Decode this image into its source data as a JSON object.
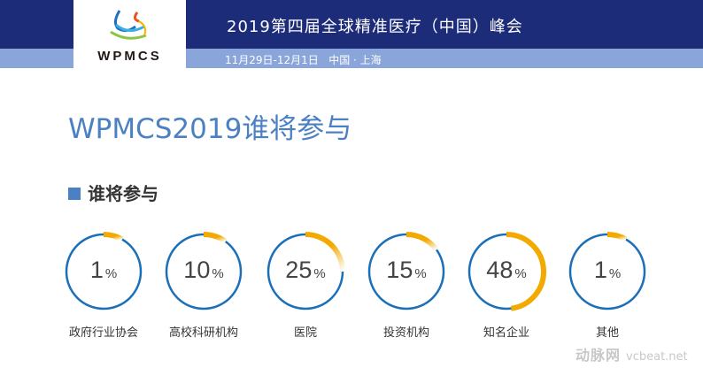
{
  "header": {
    "title": "2019第四届全球精准医疗（中国）峰会",
    "date_location": "11月29日-12月1日   中国 · 上海",
    "logo_text": "WPMCS"
  },
  "main": {
    "title": "WPMCS2019谁将参与",
    "section": "谁将参与"
  },
  "colors": {
    "ring": "#1a6fb8",
    "accent": "#f2a900",
    "header": "#1d2c79"
  },
  "stats": [
    {
      "value": "1",
      "unit": "%",
      "label": "政府行业协会"
    },
    {
      "value": "10",
      "unit": "%",
      "label": "高校科研机构"
    },
    {
      "value": "25",
      "unit": "%",
      "label": "医院"
    },
    {
      "value": "15",
      "unit": "%",
      "label": "投资机构"
    },
    {
      "value": "48",
      "unit": "%",
      "label": "知名企业"
    },
    {
      "value": "1",
      "unit": "%",
      "label": "其他"
    }
  ],
  "watermark": {
    "cn": "动脉网",
    "en": "vcbeat.net"
  }
}
